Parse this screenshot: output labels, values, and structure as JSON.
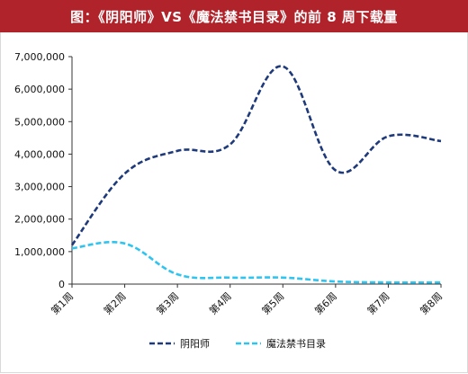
{
  "header": {
    "title": "图：《阴阳师》VS《魔法禁书目录》的前 8 周下载量"
  },
  "chart_data": {
    "type": "line",
    "title": "图：《阴阳师》VS《魔法禁书目录》的前 8 周下载量",
    "xlabel": "",
    "ylabel": "",
    "categories": [
      "第1周",
      "第2周",
      "第3周",
      "第4周",
      "第5周",
      "第6周",
      "第7周",
      "第8周"
    ],
    "y_ticks": [
      "0",
      "1,000,000",
      "2,000,000",
      "3,000,000",
      "4,000,000",
      "5,000,000",
      "6,000,000",
      "7,000,000"
    ],
    "ylim": [
      0,
      7000000
    ],
    "grid": false,
    "legend_position": "bottom",
    "series": [
      {
        "name": "阴阳师",
        "color": "#1f3a7a",
        "style": "dashed",
        "values": [
          1200000,
          3400000,
          4100000,
          4300000,
          6700000,
          3500000,
          4550000,
          4400000
        ]
      },
      {
        "name": "魔法禁书目录",
        "color": "#2ec4f0",
        "style": "dashed",
        "values": [
          1100000,
          1250000,
          300000,
          200000,
          200000,
          80000,
          50000,
          50000
        ]
      }
    ]
  }
}
